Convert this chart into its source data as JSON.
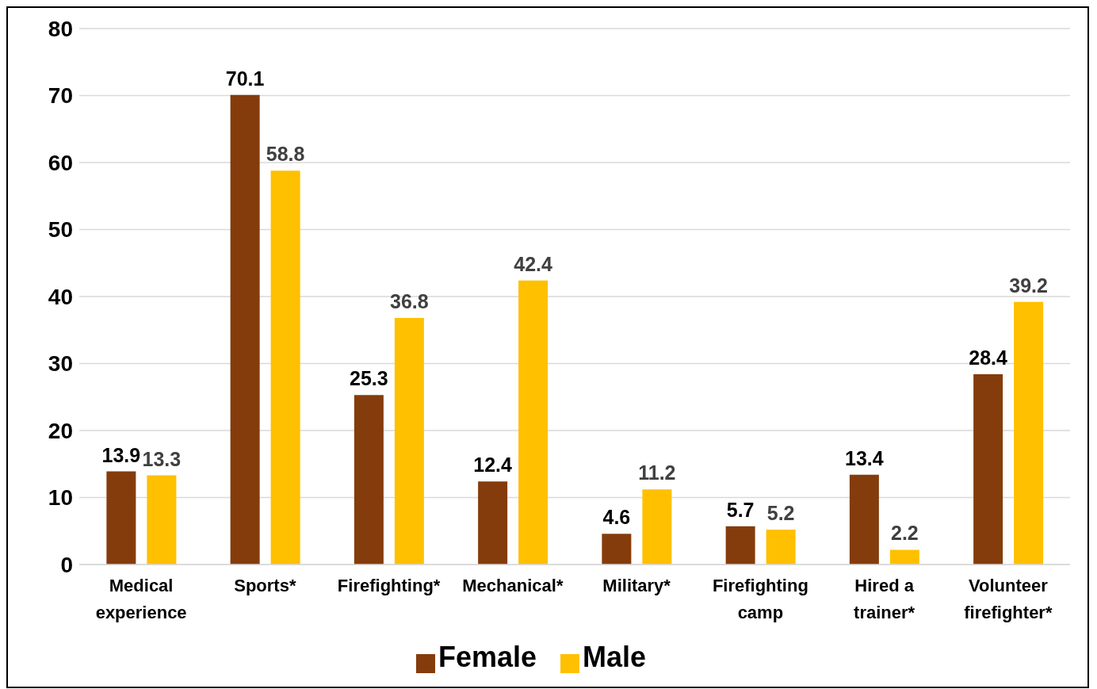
{
  "chart_data": {
    "type": "bar",
    "categories": [
      "Medical experience",
      "Sports*",
      "Firefighting*",
      "Mechanical*",
      "Military*",
      "Firefighting camp",
      "Hired a trainer*",
      "Volunteer firefighter*"
    ],
    "series": [
      {
        "name": "Female",
        "color": "#843c0c",
        "values": [
          13.9,
          70.1,
          25.3,
          12.4,
          4.6,
          5.7,
          13.4,
          28.4
        ]
      },
      {
        "name": "Male",
        "color": "#ffc000",
        "values": [
          13.3,
          58.8,
          36.8,
          42.4,
          11.2,
          5.2,
          2.2,
          39.2
        ]
      }
    ],
    "ylim": [
      0,
      80
    ],
    "yticks": [
      0,
      10,
      20,
      30,
      40,
      50,
      60,
      70,
      80
    ],
    "grid": "y",
    "legend": "bottom",
    "data_labels": true
  }
}
